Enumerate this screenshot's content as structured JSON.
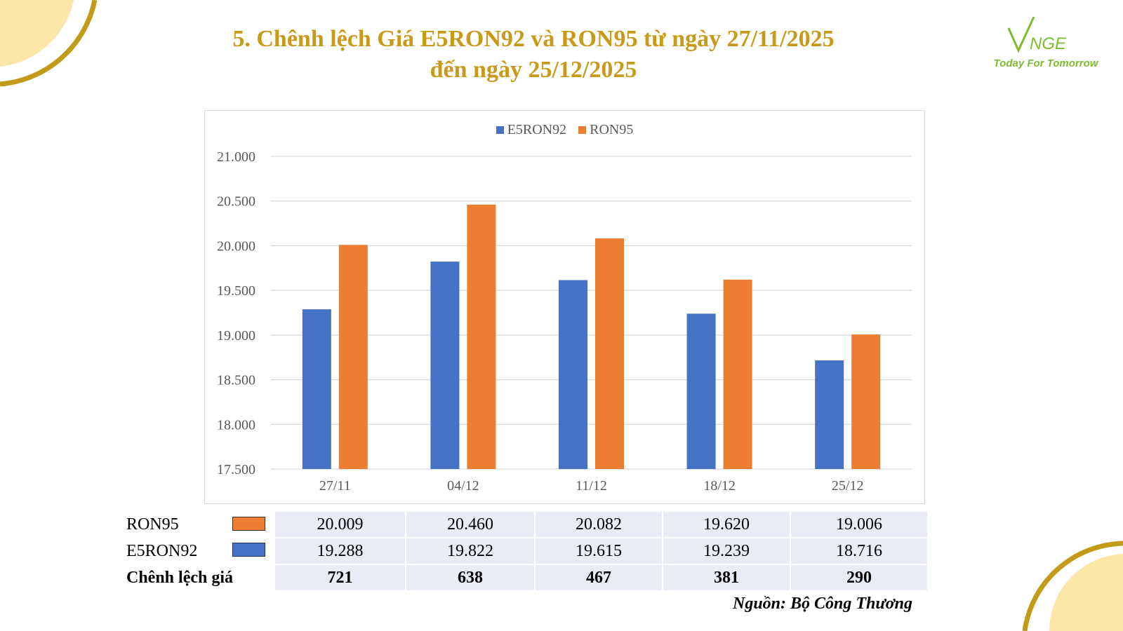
{
  "title_line1": "5. Chênh lệch Giá E5RON92 và RON95 từ ngày 27/11/2025",
  "title_line2": "đến ngày 25/12/2025",
  "logo": {
    "brand": "VNGE",
    "tagline": "Today For Tomorrow"
  },
  "colors": {
    "title": "#c89a1a",
    "e5ron92": "#4472c4",
    "ron95": "#ed7d31",
    "table_bg": "#e9ebf5",
    "accent_gold": "#c29b18",
    "corner_fill": "#fce7a9"
  },
  "chart_data": {
    "type": "bar",
    "categories": [
      "27/11",
      "04/12",
      "11/12",
      "18/12",
      "25/12"
    ],
    "series": [
      {
        "name": "E5RON92",
        "values": [
          19288,
          19822,
          19615,
          19239,
          18716
        ]
      },
      {
        "name": "RON95",
        "values": [
          20009,
          20460,
          20082,
          19620,
          19006
        ]
      }
    ],
    "ylim": [
      17500,
      21000
    ],
    "yticks": [
      "17.500",
      "18.000",
      "18.500",
      "19.000",
      "19.500",
      "20.000",
      "20.500",
      "21.000"
    ],
    "ytick_values": [
      17500,
      18000,
      18500,
      19000,
      19500,
      20000,
      20500,
      21000
    ],
    "grid": true,
    "legend_position": "top-center"
  },
  "table": {
    "rows": [
      {
        "label": "RON95",
        "values": [
          "20.009",
          "20.460",
          "20.082",
          "19.620",
          "19.006"
        ]
      },
      {
        "label": "E5RON92",
        "values": [
          "19.288",
          "19.822",
          "19.615",
          "19.239",
          "18.716"
        ]
      },
      {
        "label": "Chênh lệch giá",
        "values": [
          "721",
          "638",
          "467",
          "381",
          "290"
        ]
      }
    ]
  },
  "source": "Nguồn: Bộ Công Thương"
}
